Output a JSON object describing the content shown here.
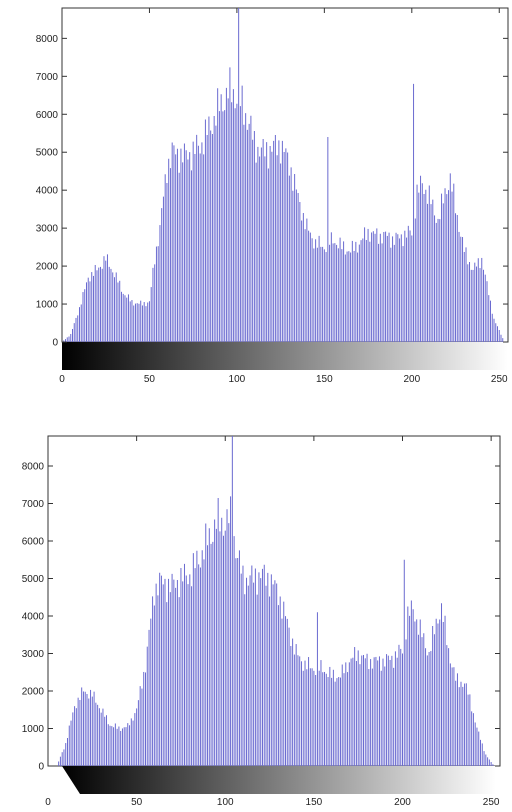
{
  "chart_data": [
    {
      "type": "bar",
      "title": "",
      "xlabel": "",
      "ylabel": "",
      "xlim": [
        0,
        255
      ],
      "ylim": [
        0,
        8800
      ],
      "x_ticks": [
        0,
        50,
        100,
        150,
        200,
        250
      ],
      "y_ticks": [
        0,
        1000,
        2000,
        3000,
        4000,
        5000,
        6000,
        7000,
        8000
      ],
      "bar_color": "#6a6ad0",
      "colorbar": {
        "from": 0,
        "to": 255,
        "color_start": "#000000",
        "color_end": "#ffffff"
      },
      "grid": false,
      "profile": [
        [
          0,
          0
        ],
        [
          5,
          200
        ],
        [
          10,
          900
        ],
        [
          15,
          1700
        ],
        [
          20,
          1900
        ],
        [
          25,
          2200
        ],
        [
          30,
          1800
        ],
        [
          35,
          1300
        ],
        [
          40,
          1050
        ],
        [
          45,
          1000
        ],
        [
          50,
          1050
        ],
        [
          53,
          2200
        ],
        [
          56,
          3000
        ],
        [
          60,
          4600
        ],
        [
          63,
          5000
        ],
        [
          70,
          4900
        ],
        [
          75,
          5000
        ],
        [
          80,
          5250
        ],
        [
          85,
          5700
        ],
        [
          90,
          6200
        ],
        [
          95,
          6600
        ],
        [
          100,
          6500
        ],
        [
          103,
          6200
        ],
        [
          107,
          5800
        ],
        [
          110,
          5200
        ],
        [
          115,
          5000
        ],
        [
          120,
          5100
        ],
        [
          125,
          5200
        ],
        [
          130,
          4700
        ],
        [
          135,
          3800
        ],
        [
          140,
          3000
        ],
        [
          145,
          2600
        ],
        [
          150,
          2500
        ],
        [
          155,
          2700
        ],
        [
          160,
          2500
        ],
        [
          165,
          2400
        ],
        [
          170,
          2600
        ],
        [
          175,
          2900
        ],
        [
          180,
          2800
        ],
        [
          185,
          2800
        ],
        [
          190,
          2700
        ],
        [
          195,
          2800
        ],
        [
          200,
          2900
        ],
        [
          203,
          3900
        ],
        [
          206,
          4200
        ],
        [
          210,
          3800
        ],
        [
          215,
          3200
        ],
        [
          220,
          4100
        ],
        [
          222,
          4300
        ],
        [
          226,
          3300
        ],
        [
          230,
          2400
        ],
        [
          235,
          1900
        ],
        [
          240,
          2200
        ],
        [
          243,
          1500
        ],
        [
          247,
          600
        ],
        [
          250,
          300
        ],
        [
          253,
          0
        ]
      ],
      "spikes": [
        [
          101,
          8800
        ],
        [
          152,
          5400
        ],
        [
          201,
          6800
        ]
      ]
    },
    {
      "type": "bar",
      "title": "",
      "xlabel": "",
      "ylabel": "",
      "xlim": [
        0,
        255
      ],
      "ylim": [
        0,
        8800
      ],
      "x_ticks": [
        0,
        50,
        100,
        150,
        200,
        250
      ],
      "y_ticks": [
        0,
        1000,
        2000,
        3000,
        4000,
        5000,
        6000,
        7000,
        8000
      ],
      "bar_color": "#6a6ad0",
      "colorbar": {
        "from": 10,
        "to": 250,
        "color_start": "#000000",
        "color_end": "#ffffff"
      },
      "grid": false,
      "profile": [
        [
          0,
          0
        ],
        [
          5,
          0
        ],
        [
          10,
          600
        ],
        [
          15,
          1600
        ],
        [
          20,
          2000
        ],
        [
          25,
          1900
        ],
        [
          30,
          1500
        ],
        [
          35,
          1100
        ],
        [
          40,
          1000
        ],
        [
          45,
          1050
        ],
        [
          50,
          1500
        ],
        [
          55,
          2700
        ],
        [
          60,
          4700
        ],
        [
          63,
          4900
        ],
        [
          70,
          4800
        ],
        [
          75,
          5000
        ],
        [
          80,
          5100
        ],
        [
          85,
          5500
        ],
        [
          90,
          6000
        ],
        [
          95,
          6500
        ],
        [
          100,
          6500
        ],
        [
          103,
          6600
        ],
        [
          107,
          5600
        ],
        [
          110,
          5000
        ],
        [
          115,
          5000
        ],
        [
          120,
          5100
        ],
        [
          125,
          5000
        ],
        [
          130,
          4600
        ],
        [
          135,
          3800
        ],
        [
          140,
          3000
        ],
        [
          145,
          2700
        ],
        [
          150,
          2600
        ],
        [
          155,
          2600
        ],
        [
          160,
          2400
        ],
        [
          165,
          2400
        ],
        [
          170,
          2800
        ],
        [
          175,
          3000
        ],
        [
          180,
          2800
        ],
        [
          185,
          2800
        ],
        [
          190,
          2800
        ],
        [
          195,
          2900
        ],
        [
          200,
          3100
        ],
        [
          203,
          4000
        ],
        [
          206,
          4200
        ],
        [
          210,
          3600
        ],
        [
          215,
          3000
        ],
        [
          220,
          4000
        ],
        [
          222,
          4200
        ],
        [
          226,
          3100
        ],
        [
          230,
          2300
        ],
        [
          235,
          2200
        ],
        [
          238,
          1800
        ],
        [
          242,
          1000
        ],
        [
          247,
          300
        ],
        [
          250,
          100
        ],
        [
          252,
          0
        ]
      ],
      "spikes": [
        [
          104,
          8800
        ],
        [
          152,
          4100
        ],
        [
          201,
          5500
        ]
      ]
    }
  ]
}
